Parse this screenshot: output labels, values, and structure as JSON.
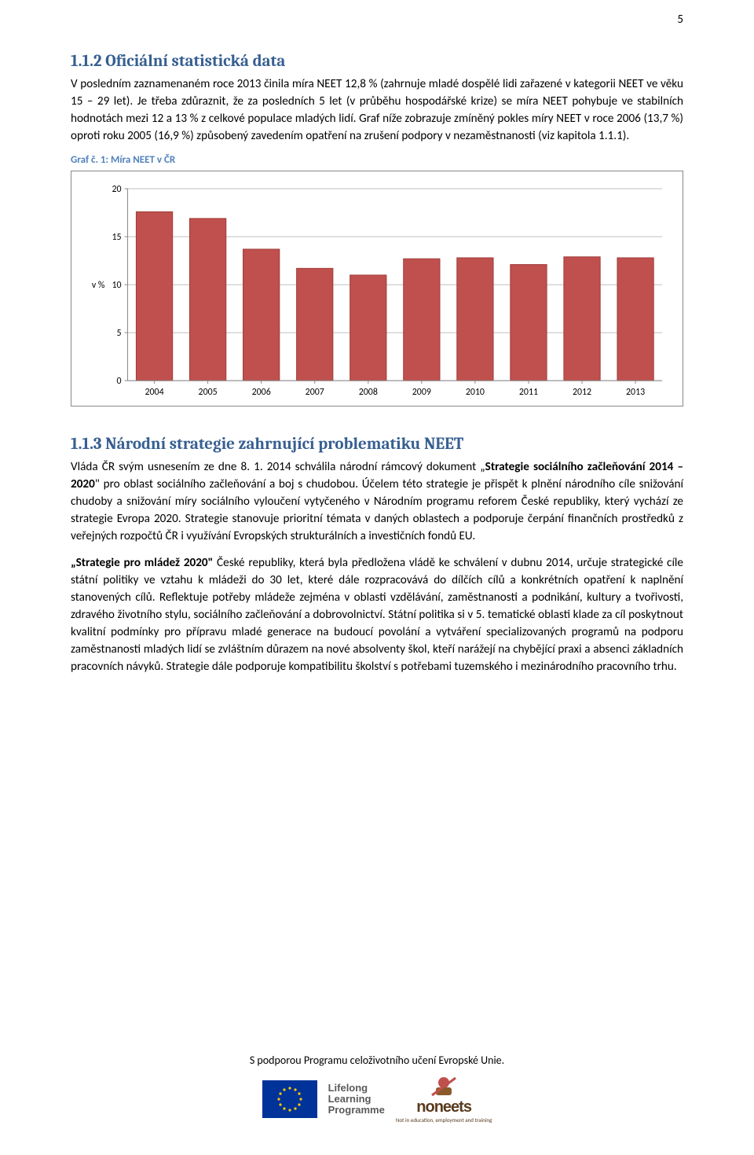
{
  "page_number": "5",
  "section1": {
    "heading": "1.1.2  Oficiální statistická data",
    "p1": "V posledním zaznamenaném roce 2013 činila míra NEET 12,8 % (zahrnuje mladé dospělé lidi zařazené v kategorii NEET ve věku 15 – 29 let). Je třeba zdůraznit, že za posledních 5 let (v průběhu hospodářské krize) se míra NEET pohybuje ve stabilních hodnotách mezi 12 a 13 % z celkové populace mladých lidí.  Graf níže zobrazuje zmíněný pokles míry NEET v roce 2006 (13,7 %) oproti roku 2005 (16,9 %) způsobený zavedením opatření na zrušení podpory v nezaměstnanosti (viz kapitola 1.1.1)."
  },
  "chart_caption": "Graf č. 1: Míra NEET v ČR",
  "chart": {
    "type": "bar",
    "categories": [
      "2004",
      "2005",
      "2006",
      "2007",
      "2008",
      "2009",
      "2010",
      "2011",
      "2012",
      "2013"
    ],
    "values": [
      17.6,
      16.9,
      13.7,
      11.7,
      11.0,
      12.7,
      12.8,
      12.1,
      12.9,
      12.8
    ],
    "bar_color": "#c0504d",
    "bar_border_color": "#9e3c3a",
    "ylabel": "v %",
    "ylim": [
      0,
      20
    ],
    "ytick_step": 5,
    "yticks": [
      "0",
      "5",
      "10",
      "15",
      "20"
    ],
    "grid_color": "#bfbfbf",
    "axis_color": "#888888",
    "background_color": "#ffffff",
    "label_fontsize": 12,
    "bar_gap_ratio": 0.32
  },
  "section2": {
    "heading": "1.1.3  Národní strategie zahrnující problematiku NEET",
    "p1_pre": "Vláda ČR svým usnesením ze dne 8. 1. 2014 schválila národní rámcový dokument „",
    "p1_bold": "Strategie sociálního začleňování 2014 – 2020",
    "p1_post": "\" pro oblast sociálního začleňování a boj s chudobou. Účelem této strategie je přispět k plnění národního cíle snižování chudoby a snižování míry sociálního vyloučení vytyčeného v Národním programu reforem České republiky, který vychází ze strategie Evropa 2020. Strategie stanovuje prioritní témata v daných oblastech a podporuje čerpání finančních prostředků z veřejných rozpočtů ČR i využívání Evropských strukturálních a investičních fondů EU.",
    "p2_bold": "„Strategie pro mládež 2020\"",
    "p2_post": " České republiky, která byla předložena vládě ke schválení v dubnu 2014, určuje strategické cíle státní politiky ve vztahu k mládeži do 30 let, které dále rozpracovává do dílčích cílů a konkrétních opatření k naplnění stanovených cílů. Reflektuje potřeby mládeže zejména v oblasti vzdělávání, zaměstnanosti a podnikání, kultury a tvořivosti, zdravého životního stylu, sociálního začleňování a dobrovolnictví. Státní politika si v 5. tematické oblasti klade za cíl poskytnout kvalitní podmínky pro přípravu mladé generace na budoucí povolání a vytváření specializovaných programů na podporu zaměstnanosti mladých lidí se zvláštním důrazem na nové absolventy škol, kteří narážejí na chybějící praxi a absenci základních pracovních návyků. Strategie dále podporuje kompatibilitu školství s potřebami tuzemského i mezinárodního pracovního trhu."
  },
  "footer": {
    "text": "S podporou Programu celoživotního učení Evropské Unie.",
    "llp_line1": "Lifelong",
    "llp_line2": "Learning",
    "llp_line3": "Programme",
    "noneets_text": "noneets",
    "noneets_sub": "Not in education, employment and training"
  }
}
